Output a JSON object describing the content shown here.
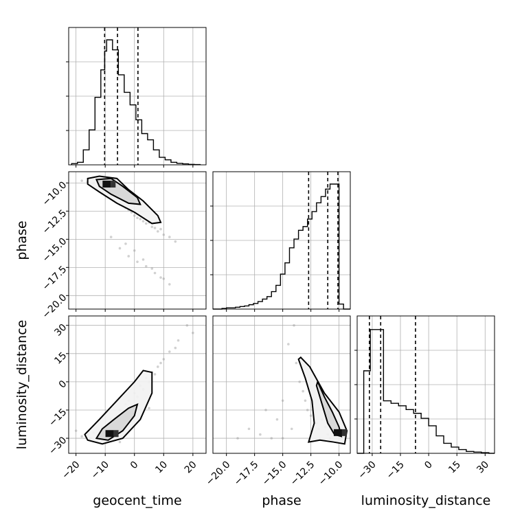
{
  "chart_data": {
    "type": "corner",
    "parameters": [
      "geocent_time",
      "phase",
      "luminosity_distance"
    ],
    "ranges": {
      "geocent_time": [
        -22.5,
        24.5
      ],
      "phase": [
        -21.2,
        -9.0
      ],
      "luminosity_distance": [
        -38,
        35
      ]
    },
    "ticks": {
      "geocent_time": {
        "values": [
          -20,
          -10,
          0,
          10,
          20
        ],
        "labels": [
          "−20",
          "−10",
          "0",
          "10",
          "20"
        ]
      },
      "phase": {
        "values": [
          -20.0,
          -17.5,
          -15.0,
          -12.5,
          -10.0
        ],
        "labels": [
          "−20.0",
          "−17.5",
          "−15.0",
          "−12.5",
          "−10.0"
        ]
      },
      "luminosity_distance": {
        "values": [
          -30,
          -15,
          0,
          15,
          30
        ],
        "labels": [
          "−30",
          "−15",
          "0",
          "15",
          "30"
        ]
      }
    },
    "grid": true,
    "histograms": {
      "geocent_time": {
        "bin_edges": [
          -21.5,
          -19.5,
          -17.5,
          -15.5,
          -13.5,
          -11.5,
          -10.2,
          -9.5,
          -7.5,
          -5.5,
          -3.5,
          -1.5,
          0.5,
          2.5,
          4.5,
          6.5,
          8.5,
          10.5,
          12.5,
          14.5,
          16.5,
          18.5,
          20.5,
          22.5
        ],
        "heights": [
          0.01,
          0.02,
          0.12,
          0.28,
          0.54,
          0.76,
          0.91,
          1.0,
          0.92,
          0.72,
          0.58,
          0.48,
          0.36,
          0.25,
          0.2,
          0.12,
          0.06,
          0.04,
          0.02,
          0.012,
          0.008,
          0.004,
          0.002
        ],
        "quantile_lines": [
          -10.2,
          -5.8,
          1.2
        ]
      },
      "phase": {
        "bin_edges": [
          -21.2,
          -20.4,
          -20.0,
          -19.6,
          -19.2,
          -18.8,
          -18.4,
          -18.0,
          -17.6,
          -17.2,
          -16.8,
          -16.4,
          -16.0,
          -15.6,
          -15.2,
          -14.8,
          -14.4,
          -14.0,
          -13.6,
          -13.2,
          -12.8,
          -12.4,
          -12.0,
          -11.6,
          -11.2,
          -10.8,
          -10.4,
          -10.0,
          -9.6,
          -9.2,
          -9.0
        ],
        "heights": [
          0.0,
          0.005,
          0.01,
          0.01,
          0.015,
          0.02,
          0.025,
          0.035,
          0.045,
          0.06,
          0.08,
          0.1,
          0.14,
          0.19,
          0.28,
          0.37,
          0.49,
          0.56,
          0.63,
          0.66,
          0.72,
          0.78,
          0.85,
          0.9,
          0.96,
          1.0,
          1.0,
          0.04,
          0.0,
          0.0
        ],
        "quantile_lines": [
          -12.7,
          -11.0,
          -10.1
        ]
      },
      "luminosity_distance": {
        "bin_edges": [
          -38,
          -34.5,
          -31,
          -28,
          -24,
          -20,
          -16,
          -12,
          -8,
          -4,
          0,
          4,
          8,
          12,
          16,
          20,
          24,
          28,
          32,
          35
        ],
        "heights": [
          0.0,
          0.66,
          0.99,
          0.99,
          0.42,
          0.4,
          0.38,
          0.35,
          0.32,
          0.28,
          0.22,
          0.14,
          0.08,
          0.05,
          0.03,
          0.015,
          0.01,
          0.005,
          0.0
        ],
        "quantile_lines": [
          -31.5,
          -25.5,
          -7.0
        ]
      }
    },
    "scatter_2d": [
      {
        "x": "geocent_time",
        "y": "phase",
        "points_x": [
          -18,
          -16,
          -15,
          -14,
          -13,
          -12,
          -11,
          -10,
          -9,
          -8,
          -7,
          -6,
          -5,
          -4,
          -3,
          -2,
          -1,
          0,
          1,
          2,
          3,
          4,
          5,
          6,
          7,
          8,
          9,
          10,
          12,
          14,
          -5,
          -2,
          1,
          4,
          7,
          10,
          -8,
          -3,
          0,
          3,
          6,
          9,
          12
        ],
        "points_y": [
          -9.8,
          -9.9,
          -10.2,
          -10.0,
          -10.5,
          -10.4,
          -10.8,
          -10.6,
          -11.0,
          -11.2,
          -11.5,
          -11.4,
          -11.9,
          -12.0,
          -12.2,
          -12.4,
          -12.6,
          -12.9,
          -13.1,
          -13.2,
          -13.4,
          -13.6,
          -13.5,
          -13.9,
          -14.0,
          -14.3,
          -14.1,
          -14.6,
          -14.8,
          -15.2,
          -15.8,
          -16.5,
          -17.0,
          -17.4,
          -18.0,
          -18.5,
          -14.8,
          -15.4,
          -16.0,
          -16.8,
          -17.6,
          -18.4,
          -19.0
        ]
      },
      {
        "x": "geocent_time",
        "y": "luminosity_distance",
        "points_x": [
          -18,
          -16,
          -14,
          -13,
          -12,
          -11,
          -10,
          -9,
          -8,
          -7,
          -6,
          -5,
          -4,
          -3,
          -2,
          -1,
          0,
          1,
          2,
          3,
          4,
          5,
          6,
          7,
          8,
          9,
          10,
          12,
          15,
          18,
          -20,
          -15,
          -5,
          5,
          14,
          20
        ],
        "points_y": [
          -29,
          -28,
          -27,
          -30,
          -26,
          -24,
          -28,
          -22,
          -20,
          -25,
          -18,
          -15,
          -20,
          -12,
          -10,
          -14,
          -6,
          -8,
          -2,
          -4,
          2,
          0,
          5,
          4,
          8,
          10,
          12,
          16,
          22,
          30,
          -26,
          -30,
          -32,
          -14,
          18,
          26
        ]
      },
      {
        "x": "phase",
        "y": "luminosity_distance",
        "points_x": [
          -19.0,
          -18.0,
          -17.0,
          -16.0,
          -15.5,
          -15.0,
          -14.5,
          -14.0,
          -13.8,
          -13.5,
          -13.2,
          -13.0,
          -12.8,
          -12.5,
          -12.2,
          -12.0,
          -11.8,
          -11.5,
          -11.2,
          -11.0,
          -10.8,
          -10.5,
          -10.2,
          -10.0,
          -9.8,
          -16.5,
          -15.0,
          -14.2
        ],
        "points_y": [
          -30,
          -25,
          -28,
          -30,
          -20,
          -10,
          20,
          30,
          10,
          0,
          -5,
          -10,
          -15,
          -18,
          -20,
          -22,
          -25,
          -20,
          -24,
          -28,
          -30,
          -26,
          -24,
          -28,
          -30,
          -15,
          -30,
          -25
        ]
      }
    ],
    "density_cores": [
      {
        "x": "geocent_time",
        "y": "phase",
        "center": [
          -9.5,
          -10.1
        ],
        "label": "core"
      },
      {
        "x": "geocent_time",
        "y": "luminosity_distance",
        "center": [
          -8.5,
          -27.5
        ],
        "label": "core"
      },
      {
        "x": "phase",
        "y": "luminosity_distance",
        "center": [
          -10.1,
          -27.0
        ],
        "label": "core"
      }
    ],
    "contours": [
      {
        "x": "geocent_time",
        "y": "phase",
        "outer": [
          [
            -16,
            -9.6
          ],
          [
            -12,
            -9.4
          ],
          [
            -6,
            -9.6
          ],
          [
            -2,
            -10.6
          ],
          [
            3,
            -11.6
          ],
          [
            8,
            -12.9
          ],
          [
            9,
            -13.5
          ],
          [
            6,
            -13.6
          ],
          [
            0,
            -12.6
          ],
          [
            -6,
            -11.8
          ],
          [
            -12,
            -10.8
          ],
          [
            -16,
            -10.1
          ]
        ],
        "inner": [
          [
            -13,
            -9.7
          ],
          [
            -8,
            -9.6
          ],
          [
            -4,
            -10.3
          ],
          [
            1,
            -11.3
          ],
          [
            2,
            -11.9
          ],
          [
            -2,
            -11.8
          ],
          [
            -8,
            -11.0
          ],
          [
            -12,
            -10.3
          ]
        ]
      },
      {
        "x": "geocent_time",
        "y": "luminosity_distance",
        "outer": [
          [
            -16,
            -31
          ],
          [
            -11,
            -33
          ],
          [
            -4,
            -30
          ],
          [
            2,
            -20
          ],
          [
            6,
            -6
          ],
          [
            6,
            5
          ],
          [
            3,
            6
          ],
          [
            0,
            0
          ],
          [
            -6,
            -10
          ],
          [
            -12,
            -20
          ],
          [
            -17,
            -28
          ]
        ],
        "inner": [
          [
            -13,
            -30
          ],
          [
            -9,
            -31
          ],
          [
            -4,
            -26
          ],
          [
            0,
            -18
          ],
          [
            1,
            -12
          ],
          [
            -2,
            -14
          ],
          [
            -7,
            -20
          ],
          [
            -11,
            -25
          ]
        ]
      },
      {
        "x": "phase",
        "y": "luminosity_distance",
        "outer": [
          [
            -13.4,
            13
          ],
          [
            -12.6,
            8
          ],
          [
            -11.3,
            -6
          ],
          [
            -10.0,
            -16
          ],
          [
            -9.3,
            -26
          ],
          [
            -9.5,
            -33
          ],
          [
            -10.5,
            -32
          ],
          [
            -11.7,
            -31
          ],
          [
            -12.7,
            -32
          ],
          [
            -12.2,
            -22
          ],
          [
            -12.4,
            -10
          ],
          [
            -13.0,
            2
          ],
          [
            -13.6,
            12
          ]
        ],
        "inner": [
          [
            -11.9,
            0
          ],
          [
            -11.3,
            -8
          ],
          [
            -10.6,
            -16
          ],
          [
            -10.0,
            -24
          ],
          [
            -9.8,
            -29
          ],
          [
            -10.4,
            -28
          ],
          [
            -11.0,
            -22
          ],
          [
            -11.6,
            -10
          ],
          [
            -12.0,
            -2
          ]
        ]
      }
    ]
  }
}
